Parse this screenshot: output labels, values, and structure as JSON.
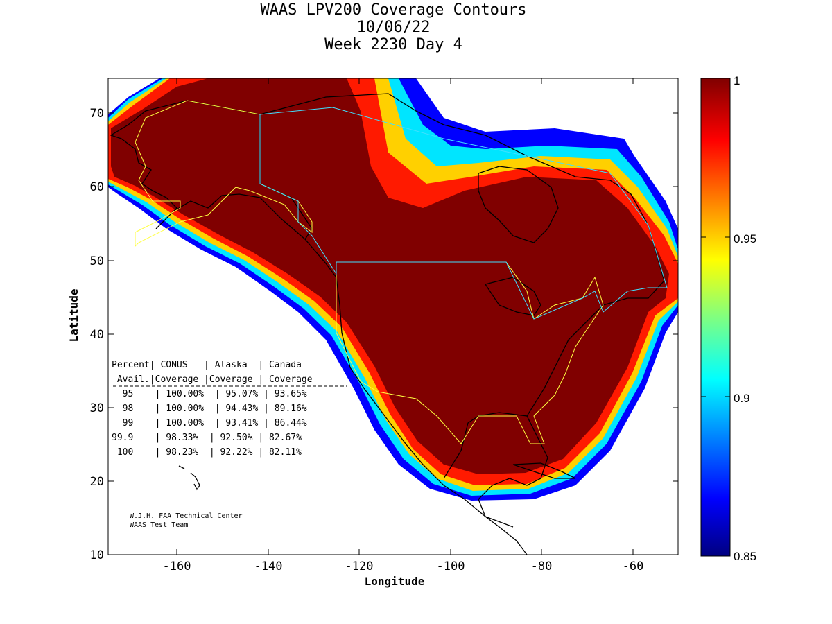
{
  "title": {
    "line1": "WAAS LPV200 Coverage Contours",
    "line2": "10/06/22",
    "line3": "Week 2230 Day 4"
  },
  "axes": {
    "xlabel": "Longitude",
    "ylabel": "Latitude",
    "xticks": [
      "-160",
      "-140",
      "-120",
      "-100",
      "-80",
      "-60"
    ],
    "yticks": [
      "70",
      "60",
      "50",
      "40",
      "30",
      "20",
      "10"
    ],
    "xlim": [
      -175,
      -50
    ],
    "ylim": [
      10,
      75
    ]
  },
  "colorbar": {
    "ticks": [
      "1",
      "0.95",
      "0.9",
      "0.85"
    ],
    "range": [
      0.85,
      1
    ],
    "colormap": "jet",
    "colors": {
      "max": "#800000",
      "red": "#ff0000",
      "yellow": "#ffff00",
      "cyan": "#00ffff",
      "blue": "#0000ff",
      "min": "#000080"
    }
  },
  "table": {
    "header1": "Percent| CONUS   | Alaska  | Canada",
    "header2": " Avail.|Coverage |Coverage | Coverage",
    "rows": [
      "  95    | 100.00%  | 95.07% | 93.65%",
      "  98    | 100.00%  | 94.43% | 89.16%",
      "  99    | 100.00%  | 93.41% | 86.44%",
      "99.9    | 98.33%  | 92.50% | 82.67%",
      " 100    | 98.23%  | 92.22% | 82.11%"
    ]
  },
  "credit": {
    "line1": "W.J.H. FAA Technical Center",
    "line2": "WAAS Test Team"
  },
  "chart_data": {
    "type": "heatmap",
    "title": "WAAS LPV200 Coverage Contours",
    "subtitle": "10/06/22 Week 2230 Day 4",
    "xlabel": "Longitude",
    "ylabel": "Latitude",
    "xlim": [
      -175,
      -50
    ],
    "ylim": [
      10,
      75
    ],
    "colorbar_range": [
      0.85,
      1
    ],
    "grid": false,
    "series": [
      {
        "region": "CONUS",
        "availability": [
          95,
          98,
          99,
          99.9,
          100
        ],
        "coverage_percent": [
          100.0,
          100.0,
          100.0,
          98.33,
          98.23
        ]
      },
      {
        "region": "Alaska",
        "availability": [
          95,
          98,
          99,
          99.9,
          100
        ],
        "coverage_percent": [
          95.07,
          94.43,
          93.41,
          92.5,
          92.22
        ]
      },
      {
        "region": "Canada",
        "availability": [
          95,
          98,
          99,
          99.9,
          100
        ],
        "coverage_percent": [
          93.65,
          89.16,
          86.44,
          82.67,
          82.11
        ]
      }
    ]
  }
}
